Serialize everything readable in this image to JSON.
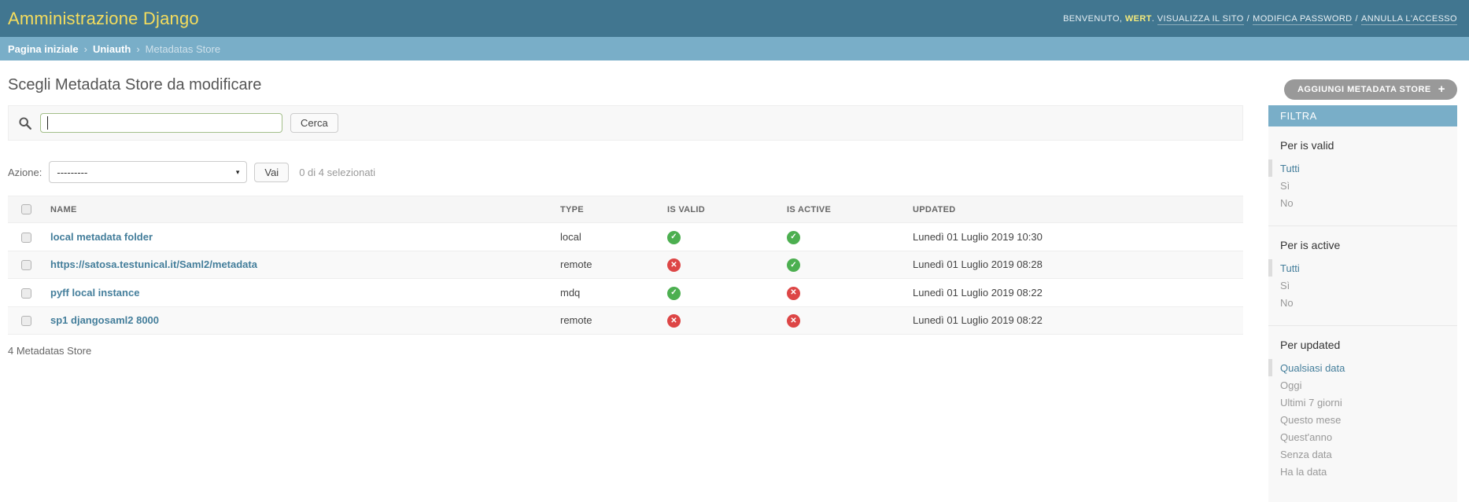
{
  "header": {
    "title": "Amministrazione Django",
    "user_tools": {
      "welcome_text": "BENVENUTO,",
      "username": "WERT",
      "after_username": ".",
      "links_separator": "/",
      "links": [
        "VISUALIZZA IL SITO",
        "MODIFICA PASSWORD",
        "ANNULLA L'ACCESSO"
      ]
    }
  },
  "breadcrumb": {
    "separator": "›",
    "items": [
      {
        "label": "Pagina iniziale",
        "current": false
      },
      {
        "label": "Uniauth",
        "current": false
      },
      {
        "label": "Metadatas Store",
        "current": true
      }
    ]
  },
  "page": {
    "title": "Scegli Metadata Store da modificare",
    "add_button_label": "AGGIUNGI METADATA STORE",
    "add_button_icon": "+"
  },
  "search": {
    "value": "",
    "button_label": "Cerca"
  },
  "actions": {
    "label": "Azione:",
    "selected_option": "---------",
    "dropdown_arrow": "▾",
    "go_button_label": "Vai",
    "counter": "0 di 4 selezionati"
  },
  "table": {
    "columns": [
      "NAME",
      "TYPE",
      "IS VALID",
      "IS ACTIVE",
      "UPDATED"
    ],
    "rows": [
      {
        "name": "local metadata folder",
        "type": "local",
        "is_valid": true,
        "is_active": true,
        "updated": "Lunedì 01 Luglio 2019 10:30"
      },
      {
        "name": "https://satosa.testunical.it/Saml2/metadata",
        "type": "remote",
        "is_valid": false,
        "is_active": true,
        "updated": "Lunedì 01 Luglio 2019 08:28"
      },
      {
        "name": "pyff local instance",
        "type": "mdq",
        "is_valid": true,
        "is_active": false,
        "updated": "Lunedì 01 Luglio 2019 08:22"
      },
      {
        "name": "sp1 djangosaml2 8000",
        "type": "remote",
        "is_valid": false,
        "is_active": false,
        "updated": "Lunedì 01 Luglio 2019 08:22"
      }
    ],
    "status_glyphs": {
      "true": "✓",
      "false": "✕"
    },
    "footer_count": "4 Metadatas Store"
  },
  "sidebar": {
    "title": "FILTRA",
    "sections": [
      {
        "heading": "Per is valid",
        "options": [
          {
            "label": "Tutti",
            "selected": true
          },
          {
            "label": "Sì",
            "selected": false
          },
          {
            "label": "No",
            "selected": false
          }
        ]
      },
      {
        "heading": "Per is active",
        "options": [
          {
            "label": "Tutti",
            "selected": true
          },
          {
            "label": "Sì",
            "selected": false
          },
          {
            "label": "No",
            "selected": false
          }
        ]
      },
      {
        "heading": "Per updated",
        "options": [
          {
            "label": "Qualsiasi data",
            "selected": true
          },
          {
            "label": "Oggi",
            "selected": false
          },
          {
            "label": "Ultimi 7 giorni",
            "selected": false
          },
          {
            "label": "Questo mese",
            "selected": false
          },
          {
            "label": "Quest'anno",
            "selected": false
          },
          {
            "label": "Senza data",
            "selected": false
          },
          {
            "label": "Ha la data",
            "selected": false
          }
        ]
      }
    ]
  },
  "colors": {
    "header_bg": "#417690",
    "breadcrumb_bg": "#79aec8",
    "brand_yellow": "#f5dd5d",
    "link_blue": "#447e9b",
    "status_ok_green": "#4caf50",
    "status_error_red": "#dd4646",
    "filter_header_bg": "#79aec8",
    "add_button_gray": "#999999",
    "search_border_green": "#a3bf8a"
  }
}
